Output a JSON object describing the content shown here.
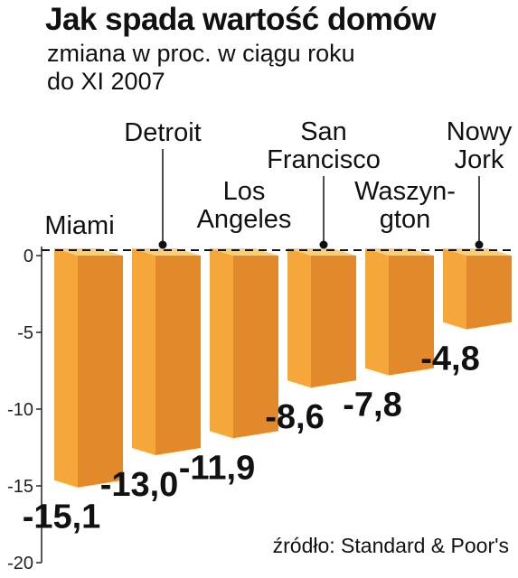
{
  "chart_data": {
    "type": "bar",
    "title": "Jak spada wartość domów",
    "subtitle": "zmiana w proc. w ciągu roku\ndo XI 2007",
    "categories": [
      "Miami",
      "Detroit",
      "Los\nAngeles",
      "San\nFrancisco",
      "Waszyn-\ngton",
      "Nowy\nJork"
    ],
    "values": [
      -15.1,
      -13.0,
      -11.9,
      -8.6,
      -7.8,
      -4.8
    ],
    "value_labels": [
      "-15,1",
      "-13,0",
      "-11,9",
      "-8,6",
      "-7,8",
      "-4,8"
    ],
    "ylim": [
      -20,
      0
    ],
    "yticks": [
      0,
      -5,
      -10,
      -15,
      -20
    ],
    "ytick_labels": [
      "0",
      "-5",
      "-10",
      "-15",
      "-20"
    ],
    "source": "źródło: Standard & Poor's",
    "colors": {
      "bar_front": "#f5a73a",
      "bar_side": "#e2892b",
      "bar_top": "#fbcf7a"
    }
  }
}
